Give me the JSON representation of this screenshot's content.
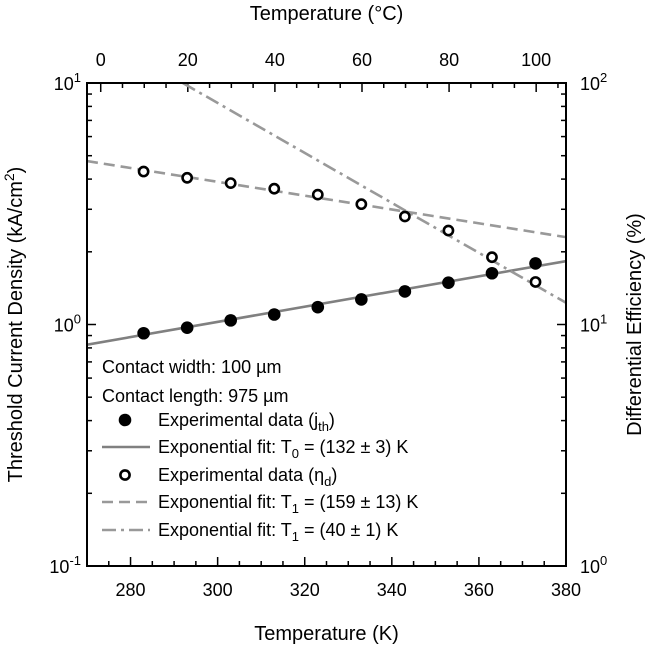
{
  "chart_data": {
    "type": "scatter",
    "x_axis_bottom": {
      "label": "Temperature (K)",
      "range": [
        270,
        380
      ],
      "ticks": [
        280,
        300,
        320,
        340,
        360,
        380
      ],
      "tick_labels": [
        "280",
        "300",
        "320",
        "340",
        "360",
        "380"
      ]
    },
    "x_axis_top": {
      "label": "Temperature (°C)",
      "offset_from_kelvin": -273.15,
      "ticks": [
        0,
        20,
        40,
        60,
        80,
        100
      ],
      "tick_labels": [
        "0",
        "20",
        "40",
        "60",
        "80",
        "100"
      ]
    },
    "y_axis_left": {
      "label_parts": [
        "Threshold Current Density (kA/cm",
        "2",
        ")"
      ],
      "scale": "log",
      "range": [
        0.1,
        10
      ],
      "major_ticks": [
        {
          "value": 0.1,
          "base": "10",
          "exp": "-1"
        },
        {
          "value": 1,
          "base": "10",
          "exp": "0"
        },
        {
          "value": 10,
          "base": "10",
          "exp": "1"
        }
      ]
    },
    "y_axis_right": {
      "label": "Differential Efficiency (%)",
      "scale": "log",
      "range": [
        1,
        100
      ],
      "major_ticks": [
        {
          "value": 1,
          "base": "10",
          "exp": "0"
        },
        {
          "value": 10,
          "base": "10",
          "exp": "1"
        },
        {
          "value": 100,
          "base": "10",
          "exp": "2"
        }
      ]
    },
    "series": [
      {
        "axis": "left",
        "marker": "filled-circle",
        "x": [
          283,
          293,
          303,
          313,
          323,
          333,
          343,
          353,
          363,
          373
        ],
        "y": [
          0.92,
          0.97,
          1.04,
          1.1,
          1.18,
          1.27,
          1.37,
          1.49,
          1.63,
          1.79
        ]
      },
      {
        "axis": "left",
        "style": "solid",
        "color": "#808080",
        "x_range": [
          270,
          380
        ],
        "y_at_endpoints": [
          0.825,
          1.83
        ]
      },
      {
        "axis": "right",
        "marker": "open-circle",
        "x": [
          283,
          293,
          303,
          313,
          323,
          333,
          343,
          353,
          363,
          373
        ],
        "y": [
          43.0,
          40.5,
          38.5,
          36.5,
          34.5,
          31.5,
          28.0,
          24.5,
          19.0,
          15.0
        ]
      },
      {
        "axis": "right",
        "style": "dashed",
        "color": "#999999",
        "x_range": [
          270,
          380
        ],
        "y_at_endpoints": [
          47.5,
          23.0
        ]
      },
      {
        "axis": "right",
        "style": "dash-dot",
        "color": "#999999",
        "x_range": [
          292,
          380
        ],
        "y_at_endpoints": [
          100,
          12.3
        ]
      }
    ],
    "legend": {
      "placement": "bottom-left",
      "header_lines": [
        "Contact width: 100 µm",
        "Contact length: 975 µm"
      ],
      "entries": [
        {
          "text": "Experimental data (j",
          "sub": "th",
          "text_after": ")",
          "marker": "filled-circle"
        },
        {
          "text": "Exponential fit: T",
          "sub": "0",
          "text_after": " = (132 ± 3) K",
          "marker": "solid-line",
          "color": "#808080"
        },
        {
          "text": "Experimental data (η",
          "sub": "d",
          "text_after": ")",
          "marker": "open-circle"
        },
        {
          "text": "Exponential fit: T",
          "sub": "1",
          "text_after": " = (159 ± 13) K",
          "marker": "dashed-line",
          "color": "#999999"
        },
        {
          "text": "Exponential fit: T",
          "sub": "1",
          "text_after": " = (40 ± 1) K",
          "marker": "dash-dot-line",
          "color": "#999999"
        }
      ]
    },
    "grid": false
  }
}
